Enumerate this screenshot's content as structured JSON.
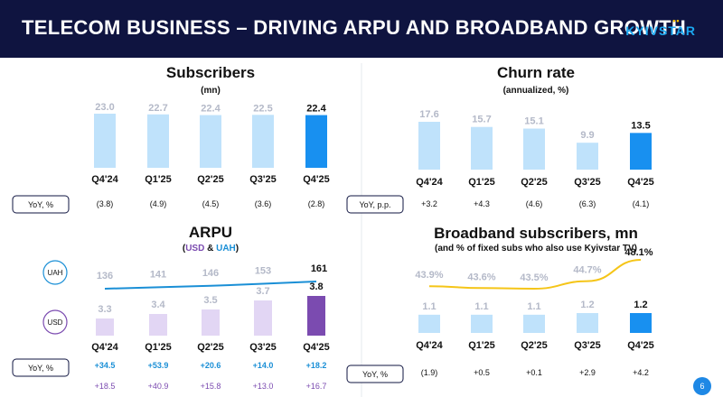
{
  "header": {
    "title": "TELECOM BUSINESS – DRIVING ARPU AND BROADBAND GROWTH",
    "logo_text": "KYIVSTAR",
    "logo_dots": "••"
  },
  "page_number": "6",
  "colors": {
    "navy": "#0f1440",
    "light_blue": "#bfe2fb",
    "bright_blue": "#1890f0",
    "light_purple": "#e2d6f4",
    "purple": "#7b4bb0",
    "uah_blue": "#1a8fd6",
    "yellow": "#f5c518",
    "grey_label": "#b4b9c8"
  },
  "chart_data": [
    {
      "id": "subscribers",
      "type": "bar",
      "title": "Subscribers",
      "subtitle": "(mn)",
      "categories": [
        "Q4'24",
        "Q1'25",
        "Q2'25",
        "Q3'25",
        "Q4'25"
      ],
      "values": [
        23.0,
        22.7,
        22.4,
        22.5,
        22.4
      ],
      "labels": [
        "23.0",
        "22.7",
        "22.4",
        "22.5",
        "22.4"
      ],
      "ylim": [
        0,
        23.0
      ],
      "yoy_label": "YoY, %",
      "yoy": [
        "(3.8)",
        "(4.9)",
        "(4.5)",
        "(3.6)",
        "(2.8)"
      ]
    },
    {
      "id": "churn",
      "type": "bar",
      "title": "Churn rate",
      "subtitle": "(annualized, %)",
      "categories": [
        "Q4'24",
        "Q1'25",
        "Q2'25",
        "Q3'25",
        "Q4'25"
      ],
      "values": [
        17.6,
        15.7,
        15.1,
        9.9,
        13.5
      ],
      "labels": [
        "17.6",
        "15.7",
        "15.1",
        "9.9",
        "13.5"
      ],
      "ylim": [
        0,
        17.6
      ],
      "yoy_label": "YoY, p.p.",
      "yoy": [
        "+3.2",
        "+4.3",
        "(4.6)",
        "(6.3)",
        "(4.1)"
      ]
    },
    {
      "id": "arpu",
      "type": "bar+line",
      "title": "ARPU",
      "subtitle_parts": [
        "(",
        "USD",
        " & ",
        "UAH",
        ")"
      ],
      "categories": [
        "Q4'24",
        "Q1'25",
        "Q2'25",
        "Q3'25",
        "Q4'25"
      ],
      "series": [
        {
          "name": "USD",
          "values": [
            3.3,
            3.4,
            3.5,
            3.7,
            3.8
          ],
          "labels": [
            "3.3",
            "3.4",
            "3.5",
            "3.7",
            "3.8"
          ]
        },
        {
          "name": "UAH",
          "values": [
            136,
            141,
            146,
            153,
            161
          ],
          "labels": [
            "136",
            "141",
            "146",
            "153",
            "161"
          ]
        }
      ],
      "legend": [
        "UAH",
        "USD"
      ],
      "yoy_label": "YoY, %",
      "yoy_uah": [
        "+34.5",
        "+53.9",
        "+20.6",
        "+14.0",
        "+18.2"
      ],
      "yoy_usd": [
        "+18.5",
        "+40.9",
        "+15.8",
        "+13.0",
        "+16.7"
      ]
    },
    {
      "id": "broadband",
      "type": "bar+line",
      "title": "Broadband subscribers, mn",
      "subtitle": "(and % of fixed subs who also use Kyivstar TV)",
      "categories": [
        "Q4'24",
        "Q1'25",
        "Q2'25",
        "Q3'25",
        "Q4'25"
      ],
      "series": [
        {
          "name": "Broadband subscribers",
          "values": [
            1.1,
            1.1,
            1.1,
            1.2,
            1.2
          ],
          "labels": [
            "1.1",
            "1.1",
            "1.1",
            "1.2",
            "1.2"
          ]
        },
        {
          "name": "% using Kyivstar TV",
          "values": [
            43.9,
            43.6,
            43.5,
            44.7,
            48.1
          ],
          "labels": [
            "43.9%",
            "43.6%",
            "43.5%",
            "44.7%",
            "48.1%"
          ]
        }
      ],
      "yoy_label": "YoY, %",
      "yoy": [
        "(1.9)",
        "+0.5",
        "+0.1",
        "+2.9",
        "+4.2"
      ]
    }
  ]
}
